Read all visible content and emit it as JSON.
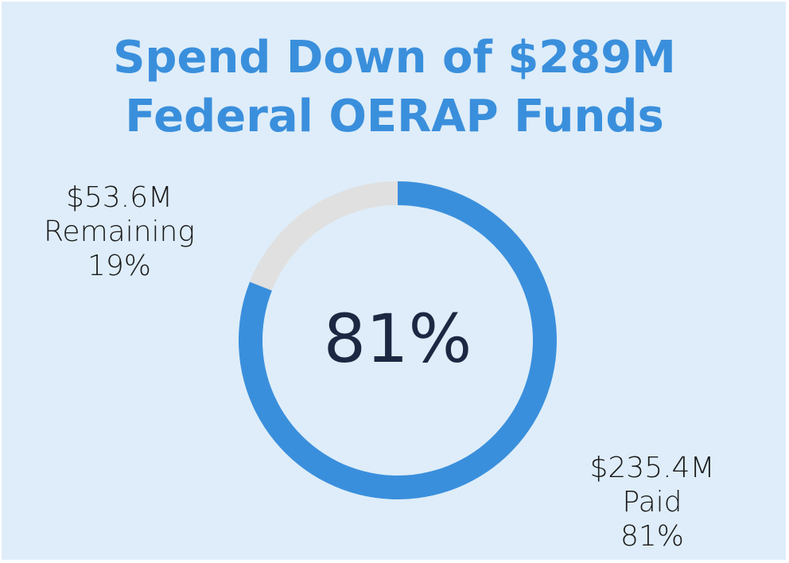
{
  "chart_data": {
    "type": "donut",
    "title": [
      "Spend Down of $289M",
      "Federal OERAP Funds"
    ],
    "categories": [
      "Paid",
      "Remaining"
    ],
    "values": [
      81,
      19
    ],
    "value_labels": [
      "81%",
      "19%"
    ],
    "amounts": [
      235400000,
      53600000
    ],
    "amount_labels": [
      "$235.4M",
      "$53.6M"
    ],
    "colors": [
      "#3a8fdc",
      "#e0e0e0"
    ],
    "background": "#deedf9"
  }
}
